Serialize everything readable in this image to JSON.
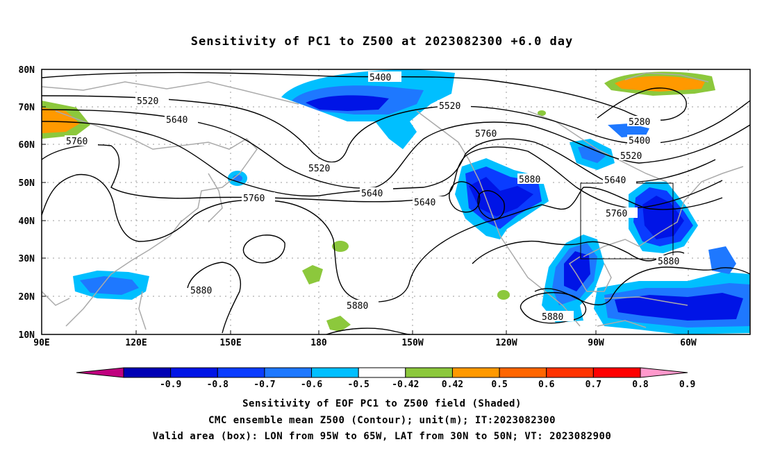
{
  "title": "Sensitivity of PC1 to Z500 at 2023082300 +6.0 day",
  "lat_labels": [
    "80N",
    "70N",
    "60N",
    "50N",
    "40N",
    "30N",
    "20N",
    "10N"
  ],
  "lon_labels": [
    "90E",
    "120E",
    "150E",
    "180",
    "150W",
    "120W",
    "90W",
    "60W"
  ],
  "contour_labels": [
    "5400",
    "5520",
    "5640",
    "5760",
    "5520",
    "5640",
    "5760",
    "5880",
    "5280",
    "5400",
    "5520",
    "5640",
    "5760",
    "5880",
    "5880",
    "5880",
    "5520",
    "5760",
    "5880"
  ],
  "colorbar": {
    "labels": [
      "-0.9",
      "-0.8",
      "-0.7",
      "-0.6",
      "-0.5",
      "-0.42",
      "0.42",
      "0.5",
      "0.6",
      "0.7",
      "0.8",
      "0.9"
    ],
    "colors": [
      "#c0007f",
      "#0000b4",
      "#0014e6",
      "#0a3cff",
      "#1e78ff",
      "#00bfff",
      "#ffffff",
      "#8cc83c",
      "#ff9900",
      "#ff6600",
      "#ff3300",
      "#ff0000",
      "#ff99cc"
    ]
  },
  "captions": [
    "Sensitivity of EOF PC1 to Z500 field (Shaded)",
    "CMC ensemble mean Z500 (Contour); unit(m); IT:2023082300",
    "Valid area (box): LON from 95W to 65W, LAT from 30N to 50N; VT: 2023082900"
  ]
}
